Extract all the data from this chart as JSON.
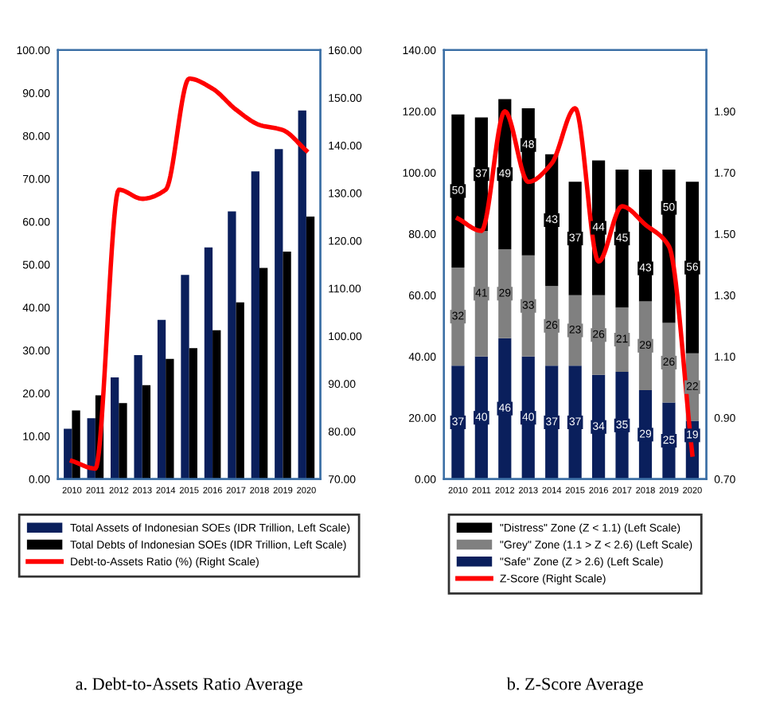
{
  "chart_data": [
    {
      "type": "bar",
      "annotations": [
        "a. Debt-to-Assets Ratio Average"
      ],
      "categories": [
        "2010",
        "2011",
        "2012",
        "2013",
        "2014",
        "2015",
        "2016",
        "2017",
        "2018",
        "2019",
        "2020"
      ],
      "series": [
        {
          "name": "Total Assets of Indonesian SOEs (IDR Trillion, Left Scale)",
          "color": "#0a1f5c",
          "values": [
            11.7,
            14.2,
            23.7,
            28.9,
            37.1,
            47.6,
            54.0,
            62.4,
            71.7,
            76.9,
            85.9
          ]
        },
        {
          "name": "Total Debts of Indonesian SOEs (IDR Trillion, Left Scale)",
          "color": "#000000",
          "values": [
            16.0,
            19.5,
            17.7,
            21.9,
            28.0,
            30.5,
            34.7,
            41.2,
            49.2,
            53.0,
            61.2
          ]
        },
        {
          "name": "Debt-to-Assets Ratio (%) (Right Scale)",
          "type": "line",
          "axis": "y2",
          "color": "#ff0000",
          "values": [
            73.8,
            72.2,
            130.7,
            128.8,
            130.7,
            154.0,
            151.9,
            147.5,
            144.3,
            143.2,
            138.9
          ]
        }
      ],
      "ylim": [
        0,
        100
      ],
      "yticks": [
        {
          "value": 0,
          "label": "0.00"
        },
        {
          "value": 10,
          "label": "10.00"
        },
        {
          "value": 20,
          "label": "20.00"
        },
        {
          "value": 30,
          "label": "30.00"
        },
        {
          "value": 40,
          "label": "40.00"
        },
        {
          "value": 50,
          "label": "50.00"
        },
        {
          "value": 60,
          "label": "60.00"
        },
        {
          "value": 70,
          "label": "70.00"
        },
        {
          "value": 80,
          "label": "80.00"
        },
        {
          "value": 90,
          "label": "90.00"
        },
        {
          "value": 100,
          "label": "100.00"
        }
      ],
      "y2lim": [
        70,
        160
      ],
      "y2ticks": [
        {
          "value": 70,
          "label": "70.00"
        },
        {
          "value": 80,
          "label": "80.00"
        },
        {
          "value": 90,
          "label": "90.00"
        },
        {
          "value": 100,
          "label": "100.00"
        },
        {
          "value": 110,
          "label": "110.00"
        },
        {
          "value": 120,
          "label": "120.00"
        },
        {
          "value": 130,
          "label": "130.00"
        },
        {
          "value": 140,
          "label": "140.00"
        },
        {
          "value": 150,
          "label": "150.00"
        },
        {
          "value": 160,
          "label": "160.00"
        }
      ],
      "legend": "bottom",
      "grid": false,
      "line_style": "solid",
      "marker": "none"
    },
    {
      "type": "bar",
      "stacked": true,
      "annotations": [
        "b. Z-Score Average"
      ],
      "categories": [
        "2010",
        "2011",
        "2012",
        "2013",
        "2014",
        "2015",
        "2016",
        "2017",
        "2018",
        "2019",
        "2020"
      ],
      "series": [
        {
          "name": "\"Safe\" Zone (Z > 2.6) (Left Scale)",
          "color": "#0a1f5c",
          "values": [
            37,
            40,
            46,
            40,
            37,
            37,
            34,
            35,
            29,
            25,
            19
          ],
          "value_labels": [
            "37",
            "40",
            "46",
            "40",
            "37",
            "37",
            "34",
            "35",
            "29",
            "25",
            "19"
          ]
        },
        {
          "name": "\"Grey\" Zone (1.1 > Z < 2.6) (Left Scale)",
          "color": "#808080",
          "values": [
            32,
            41,
            29,
            33,
            26,
            23,
            26,
            21,
            29,
            26,
            22
          ],
          "value_labels": [
            "32",
            "41",
            "29",
            "33",
            "26",
            "23",
            "26",
            "21",
            "29",
            "26",
            "22"
          ]
        },
        {
          "name": "\"Distress\" Zone (Z < 1.1) (Left Scale)",
          "color": "#000000",
          "values": [
            50,
            37,
            49,
            48,
            43,
            37,
            44,
            45,
            43,
            50,
            56
          ],
          "value_labels": [
            "50",
            "37",
            "49",
            "48",
            "43",
            "37",
            "44",
            "45",
            "43",
            "50",
            "56"
          ]
        },
        {
          "name": "Z-Score (Right Scale)",
          "type": "line",
          "axis": "y2",
          "color": "#ff0000",
          "values": [
            1.55,
            1.51,
            1.9,
            1.67,
            1.73,
            1.91,
            1.41,
            1.59,
            1.53,
            1.46,
            0.78
          ]
        }
      ],
      "ylim": [
        0,
        140
      ],
      "yticks": [
        {
          "value": 0,
          "label": "0.00"
        },
        {
          "value": 20,
          "label": "20.00"
        },
        {
          "value": 40,
          "label": "40.00"
        },
        {
          "value": 60,
          "label": "60.00"
        },
        {
          "value": 80,
          "label": "80.00"
        },
        {
          "value": 100,
          "label": "100.00"
        },
        {
          "value": 120,
          "label": "120.00"
        },
        {
          "value": 140,
          "label": "140.00"
        }
      ],
      "y2lim": [
        0.7,
        2.1
      ],
      "y2ticks": [
        {
          "value": 0.7,
          "label": "0.70"
        },
        {
          "value": 0.9,
          "label": "0.90"
        },
        {
          "value": 1.1,
          "label": "1.10"
        },
        {
          "value": 1.3,
          "label": "1.30"
        },
        {
          "value": 1.5,
          "label": "1.50"
        },
        {
          "value": 1.7,
          "label": "1.70"
        },
        {
          "value": 1.9,
          "label": "1.90"
        }
      ],
      "legend": "bottom",
      "grid": false,
      "line_style": "solid",
      "marker": "none"
    }
  ]
}
